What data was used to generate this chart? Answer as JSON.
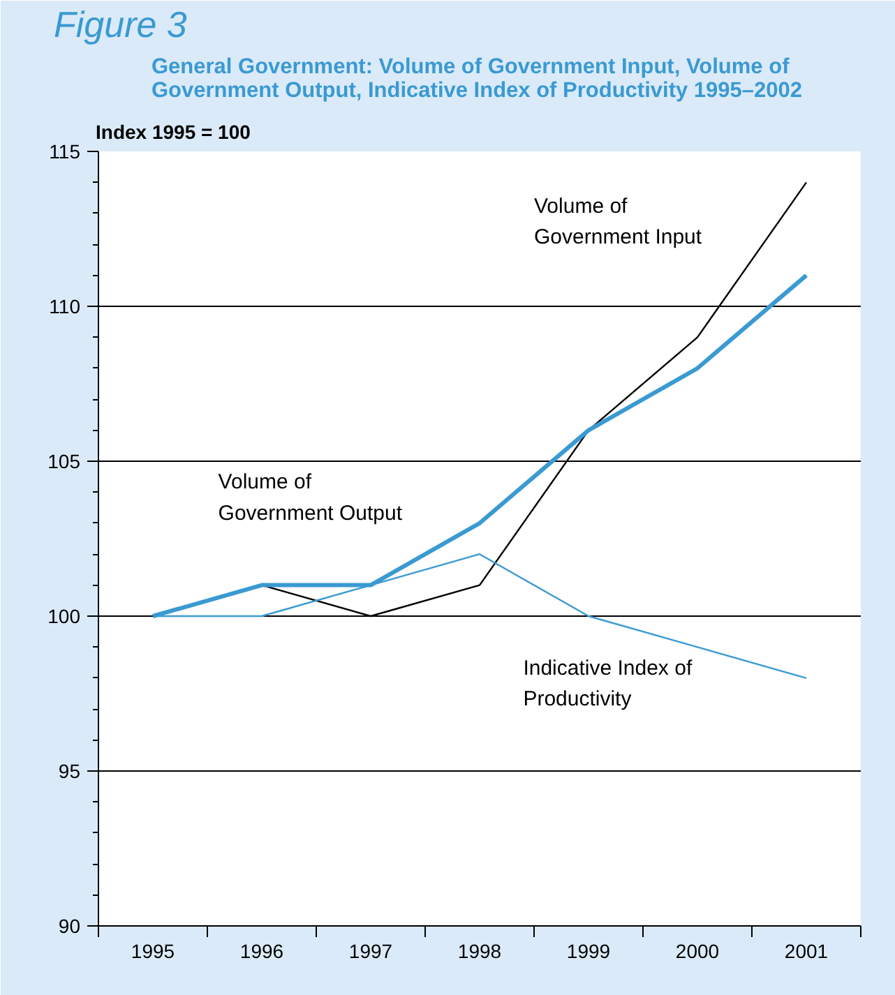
{
  "chart_data": {
    "type": "line",
    "title": "Figure 3",
    "subtitle": "General Government: Volume of Government Input, Volume  of Government Output, Indicative Index of Productivity 1995–2002",
    "ylabel": "Index 1995 = 100",
    "categories": [
      "1995",
      "1996",
      "1997",
      "1998",
      "1999",
      "2000",
      "2001"
    ],
    "series": [
      {
        "name": "Volume of Government Input",
        "color": "#000000",
        "values": [
          100,
          101,
          100,
          101,
          106,
          109,
          114
        ]
      },
      {
        "name": "Volume of Government Output",
        "color": "#3a9ad2",
        "values": [
          100,
          101,
          101,
          103,
          106,
          108,
          111
        ]
      },
      {
        "name": "Indicative Index of Productivity",
        "color": "#3a9ad2",
        "values": [
          100,
          100,
          101,
          102,
          100,
          99,
          98
        ]
      }
    ],
    "ylim": [
      90,
      115
    ],
    "yticks": [
      90,
      95,
      100,
      105,
      110,
      115
    ],
    "grid": "y",
    "legend": false,
    "line_style": "solid",
    "marker": "none"
  }
}
